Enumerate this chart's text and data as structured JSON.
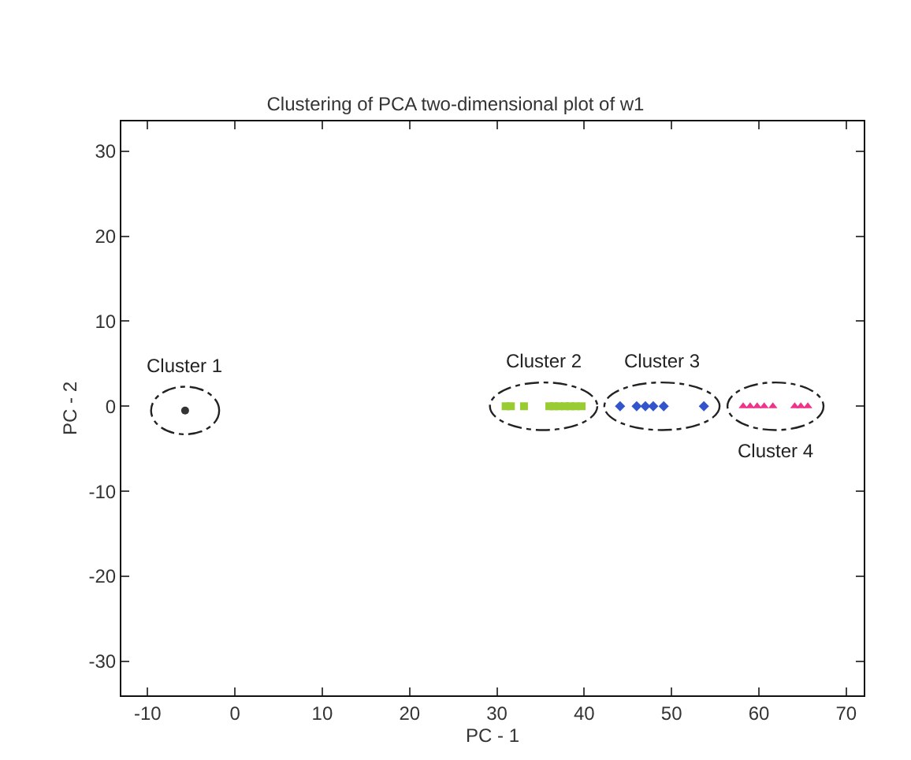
{
  "chart_data": {
    "type": "scatter",
    "title": "Clustering of PCA two-dimensional plot of w1",
    "xlabel": "PC - 1",
    "ylabel": "PC - 2",
    "xlim": [
      -13,
      72
    ],
    "ylim": [
      -34,
      33.5
    ],
    "xticks": [
      -10,
      0,
      10,
      20,
      30,
      40,
      50,
      60,
      70
    ],
    "yticks": [
      -30,
      -20,
      -10,
      0,
      10,
      20,
      30
    ],
    "grid": false,
    "legend": false,
    "series": [
      {
        "name": "Cluster 1",
        "color": "#333333",
        "marker": "circle",
        "x": [
          -5.7
        ],
        "values": [
          -0.5
        ]
      },
      {
        "name": "Cluster 2",
        "color": "#99cc33",
        "marker": "square",
        "x": [
          31.0,
          31.6,
          33.1,
          36.0,
          36.5,
          37.1,
          37.8,
          38.4,
          39.0,
          39.7
        ],
        "values": [
          0,
          0,
          0,
          0,
          0,
          0,
          0,
          0,
          0,
          0
        ]
      },
      {
        "name": "Cluster 3",
        "color": "#3355cc",
        "marker": "diamond",
        "x": [
          44.1,
          46.0,
          47.0,
          47.9,
          49.1,
          53.7
        ],
        "values": [
          0,
          0,
          0,
          0,
          0,
          0
        ]
      },
      {
        "name": "Cluster 4",
        "color": "#ee3388",
        "marker": "triangle",
        "x": [
          58.2,
          59.0,
          59.8,
          60.6,
          61.6,
          64.1,
          64.8,
          65.6
        ],
        "values": [
          0,
          0,
          0,
          0,
          0,
          0,
          0,
          0
        ]
      }
    ]
  }
}
